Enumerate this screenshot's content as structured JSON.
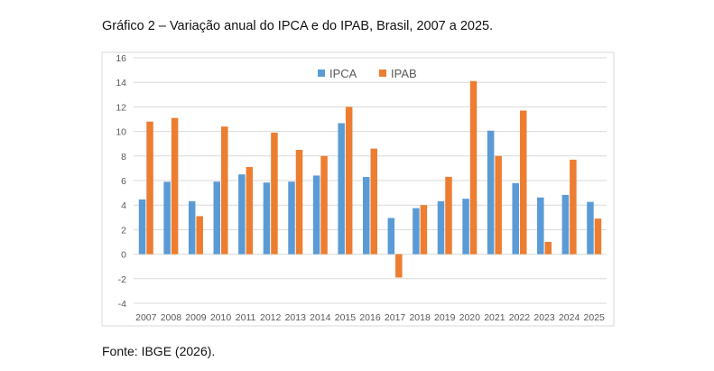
{
  "title": "Gráfico 2 – Variação anual do IPCA e do IPAB, Brasil, 2007 a 2025.",
  "source": "Fonte: IBGE (2026).",
  "chart_data": {
    "type": "bar",
    "title": "",
    "categories": [
      "2007",
      "2008",
      "2009",
      "2010",
      "2011",
      "2012",
      "2013",
      "2014",
      "2015",
      "2016",
      "2017",
      "2018",
      "2019",
      "2020",
      "2021",
      "2022",
      "2023",
      "2024",
      "2025"
    ],
    "series": [
      {
        "name": "IPCA",
        "color": "#5b9bd5",
        "values": [
          4.46,
          5.9,
          4.31,
          5.91,
          6.5,
          5.84,
          5.91,
          6.41,
          10.67,
          6.29,
          2.95,
          3.75,
          4.31,
          4.52,
          10.06,
          5.79,
          4.62,
          4.83,
          4.26
        ]
      },
      {
        "name": "IPAB",
        "color": "#ed7d31",
        "values": [
          10.8,
          11.1,
          3.1,
          10.4,
          7.1,
          9.9,
          8.5,
          8.0,
          12.0,
          8.6,
          -1.9,
          4.0,
          6.3,
          14.1,
          8.0,
          11.7,
          1.0,
          7.7,
          2.9
        ]
      }
    ],
    "yticks": [
      "16",
      "14",
      "12",
      "10",
      "8",
      "6",
      "4",
      "2",
      "0",
      "-2",
      "-4"
    ],
    "ylim": [
      -4,
      16
    ],
    "grid": true,
    "legend": "top-center"
  }
}
